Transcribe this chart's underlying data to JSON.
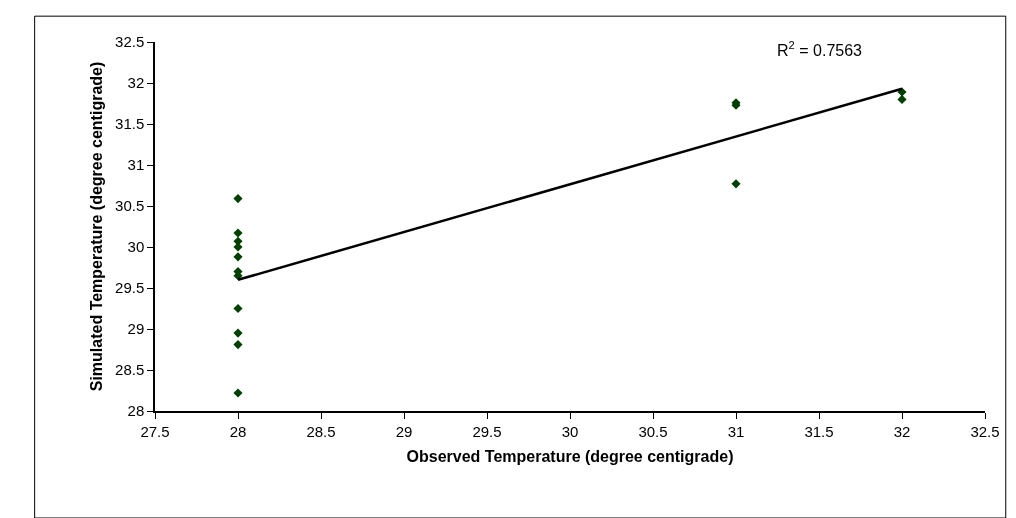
{
  "chart_data": {
    "type": "scatter",
    "xlabel": "Observed Temperature (degree centigrade)",
    "ylabel": "Simulated Temperature (degree centigrade)",
    "series": [
      {
        "color": "#004000",
        "marker": "diamond",
        "x": [
          28,
          28,
          28,
          28,
          28,
          28,
          28,
          28,
          28,
          28,
          28,
          31,
          31,
          31,
          32,
          32
        ],
        "values": [
          30.59,
          30.17,
          30.07,
          30.0,
          29.88,
          29.7,
          29.65,
          29.25,
          28.95,
          28.81,
          28.22,
          31.76,
          31.73,
          30.77,
          31.89,
          31.8
        ]
      },
      {
        "type": "line",
        "color": "#000000",
        "marker": "none",
        "line_style": "solid",
        "x": [
          28,
          32
        ],
        "values": [
          29.6,
          31.93
        ]
      }
    ],
    "annotations": [
      "R$^{2}$ = 0.7563"
    ],
    "xlim": [
      27.5,
      32.5
    ],
    "xticks": [
      27.5,
      28,
      28.5,
      29,
      29.5,
      30,
      30.5,
      31,
      31.5,
      32,
      32.5
    ],
    "ylim": [
      28,
      32.5
    ],
    "yticks": [
      28,
      28.5,
      29,
      29.5,
      30,
      30.5,
      31,
      31.5,
      32,
      32.5
    ]
  }
}
